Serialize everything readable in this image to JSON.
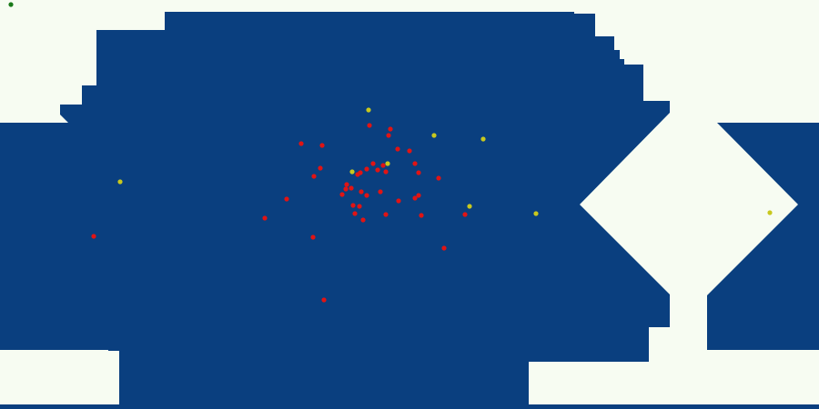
{
  "colors": {
    "background": "#f7fcf2",
    "water": "#0a3f7f",
    "player": "#1a7a1a",
    "enemy": "#e01414",
    "pickup": "#c8c81e"
  },
  "counts": {
    "players": 1,
    "enemies": 47,
    "pickups": 9
  }
}
